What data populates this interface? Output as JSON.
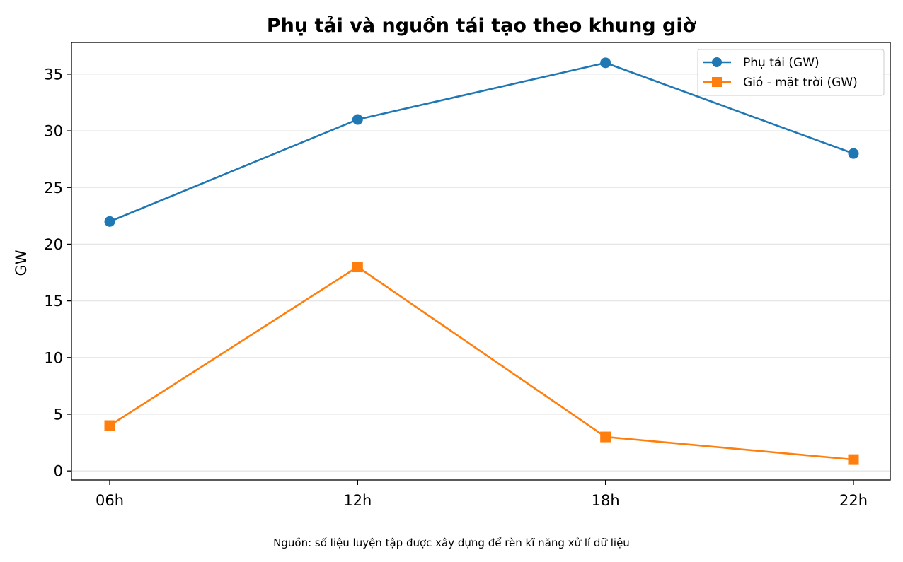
{
  "chart_data": {
    "type": "line",
    "title": "Phụ tải và nguồn tái tạo theo khung giờ",
    "xlabel": "",
    "ylabel": "GW",
    "categories": [
      "06h",
      "12h",
      "18h",
      "22h"
    ],
    "ylim": [
      -0.8,
      37.8
    ],
    "yticks": [
      0,
      5,
      10,
      15,
      20,
      25,
      30,
      35
    ],
    "grid": "horizontal",
    "legend_position": "top-right",
    "series": [
      {
        "name": "Phụ tải (GW)",
        "values": [
          22,
          31,
          36,
          28
        ],
        "color": "#1f77b4",
        "marker": "circle"
      },
      {
        "name": "Gió - mặt trời (GW)",
        "values": [
          4,
          18,
          3,
          1
        ],
        "color": "#ff7f0e",
        "marker": "square"
      }
    ],
    "footnote": "Nguồn: số liệu luyện tập được xây dựng để rèn kĩ năng xử lí dữ liệu"
  }
}
